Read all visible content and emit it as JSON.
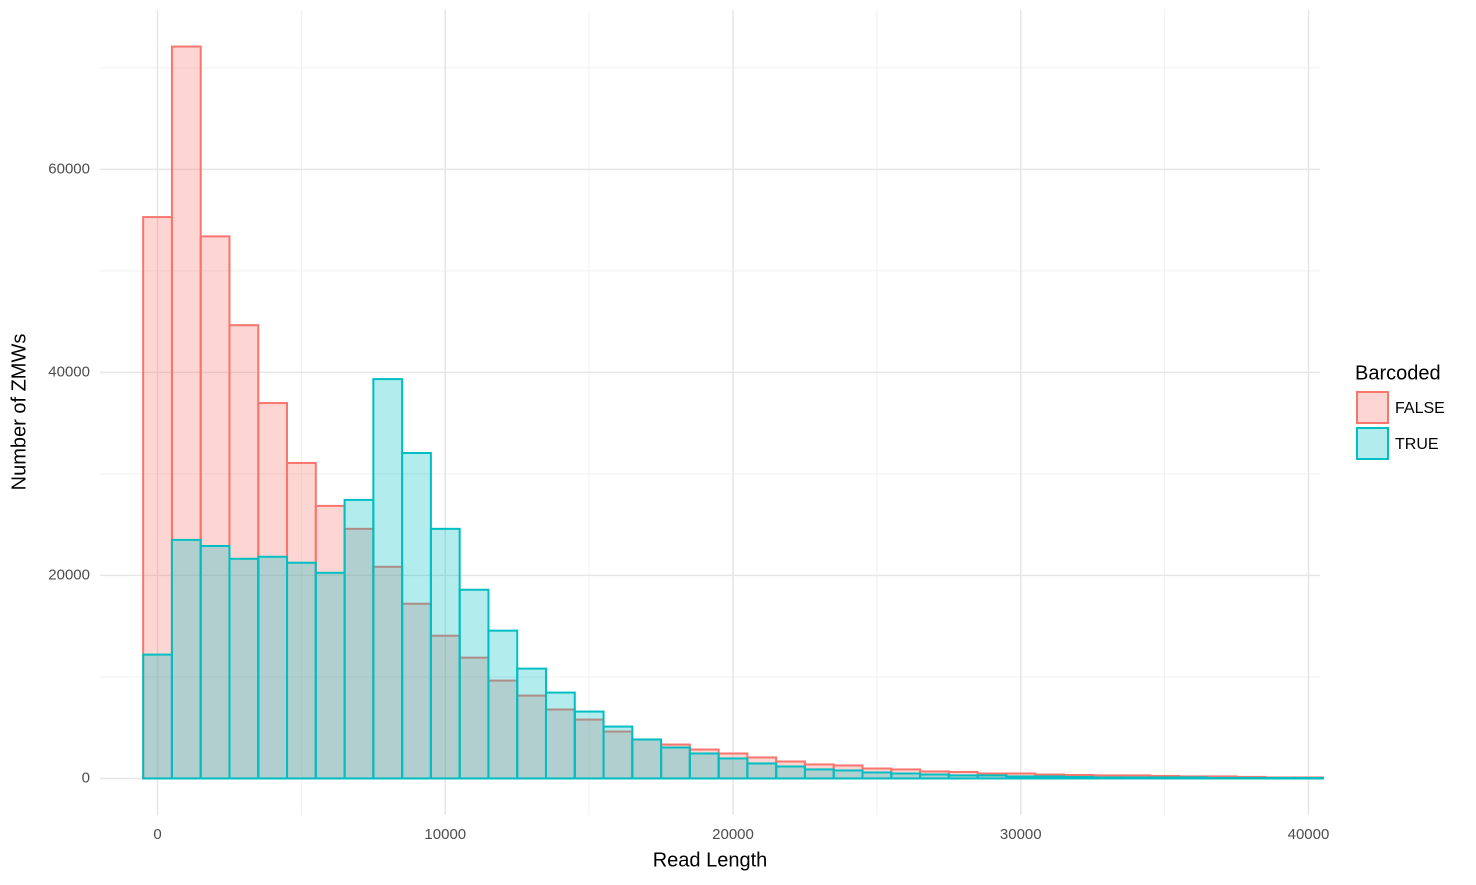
{
  "chart_data": {
    "type": "histogram",
    "x_label": "Read Length",
    "y_label": "Number of ZMWs",
    "legend_title": "Barcoded",
    "legend_position": "right",
    "grid": true,
    "bins": [
      -500,
      500,
      1500,
      2500,
      3500,
      4500,
      5500,
      6500,
      7500,
      8500,
      9500,
      10500,
      11500,
      12500,
      13500,
      14500,
      15500,
      16500,
      17500,
      18500,
      19500,
      20500,
      21500,
      22500,
      23500,
      24500,
      25500,
      26500,
      27500,
      28500,
      29500,
      30500,
      31500,
      32500,
      33500,
      34500,
      35500,
      36500,
      37500,
      38500,
      39500,
      40500
    ],
    "series": [
      {
        "name": "FALSE",
        "color": "#F8766D",
        "values": [
          55300,
          72100,
          53400,
          44650,
          36980,
          31080,
          26850,
          24590,
          20850,
          17210,
          14060,
          11900,
          9640,
          8160,
          6790,
          5800,
          4620,
          3840,
          3340,
          2850,
          2460,
          2070,
          1670,
          1380,
          1280,
          980,
          890,
          690,
          640,
          490,
          490,
          390,
          340,
          300,
          300,
          250,
          200,
          200,
          150,
          100,
          100
        ]
      },
      {
        "name": "TRUE",
        "color": "#00BFC4",
        "values": [
          12200,
          23500,
          22900,
          21640,
          21840,
          21250,
          20260,
          27440,
          39340,
          32060,
          24590,
          18590,
          14560,
          10820,
          8460,
          6590,
          5110,
          3840,
          3050,
          2460,
          1970,
          1480,
          1180,
          890,
          790,
          590,
          490,
          390,
          300,
          300,
          200,
          200,
          150,
          100,
          100,
          100,
          100,
          50,
          50,
          50,
          50
        ]
      }
    ],
    "xlim": [
      -2000,
      40400
    ],
    "xticks": [
      0,
      10000,
      20000,
      30000,
      40000
    ],
    "ylim": [
      -3600,
      75700
    ],
    "yticks": [
      0,
      20000,
      40000,
      60000
    ]
  }
}
